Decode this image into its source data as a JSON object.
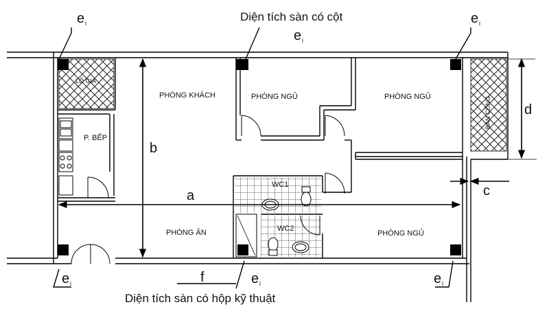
{
  "labels": {
    "column_area": "Diện tích sàn có cột",
    "duct_area": "Diện tích sàn có hộp kỹ thuật",
    "e": "e",
    "e_sub": "i",
    "a": "a",
    "b": "b",
    "c": "c",
    "d": "d",
    "f": "f"
  },
  "rooms": {
    "living": "PHÒNG KHÁCH",
    "bed1": "PHÒNG NGỦ",
    "bed2": "PHÒNG NGỦ",
    "bed3": "PHÒNG NGỦ",
    "kitchen": "P. BẾP",
    "dining": "PHÒNG ĂN",
    "wc1": "WC1",
    "wc2": "WC2",
    "logia": "LÔ GIA",
    "balcony": "BAN CÔNG"
  }
}
